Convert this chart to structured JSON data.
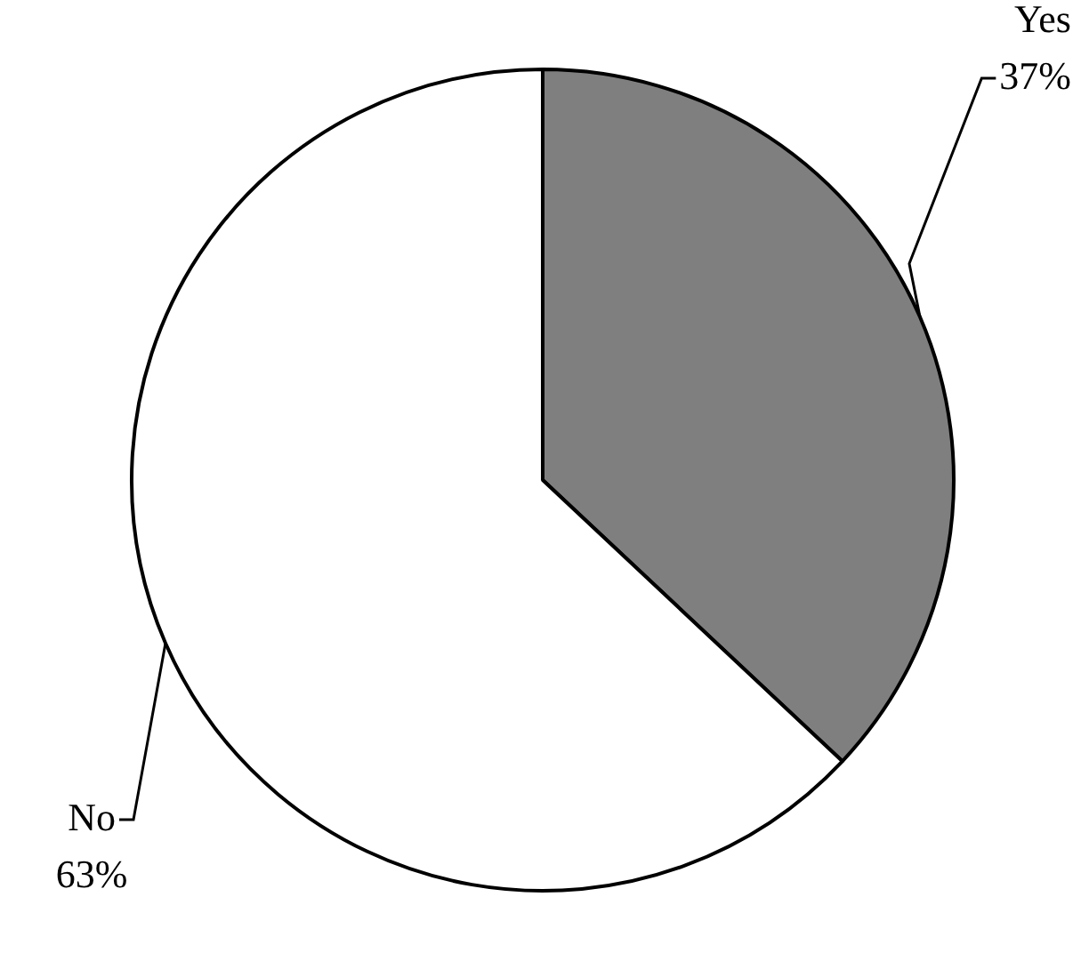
{
  "chart_data": {
    "type": "pie",
    "categories": [
      "Yes",
      "No"
    ],
    "values": [
      37,
      63
    ],
    "colors": [
      "#7f7f7f",
      "#ffffff"
    ],
    "value_labels": [
      "37%",
      "63%"
    ],
    "legend": false
  }
}
